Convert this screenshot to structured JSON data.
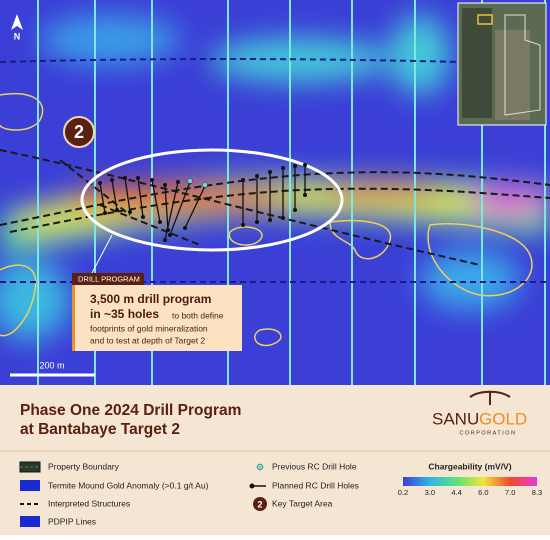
{
  "map": {
    "north": "N",
    "target_label": "2",
    "scale_label": "200 m",
    "callout": {
      "tag": "DRILL PROGRAM",
      "headline_1": "3,500 m drill program",
      "headline_2": "in ~35 holes",
      "body_1": "to both define",
      "body_2": "footprints of gold mineralization",
      "body_3": "and to test at depth of Target 2"
    }
  },
  "title": [
    "Phase One 2024 Drill Program",
    "at Bantabaye Target 2"
  ],
  "logo": {
    "name_1": "SANU",
    "name_2": "GOLD",
    "sub": "CORPORATION"
  },
  "legend": {
    "items": [
      "Property Boundary",
      "Termite Mound Gold Anomaly (>0.1 g/t Au)",
      "Interpreted Structures",
      "PDPIP Lines",
      "Previous RC Drill Hole",
      "Planned RC Drill Holes",
      "Key Target Area"
    ],
    "colorbar": {
      "title": "Chargeability (mV/V)",
      "ticks": [
        0.2,
        {
          "value": 3,
          "label": "3.0"
        },
        4.4,
        {
          "value": 6,
          "label": "6.0"
        },
        {
          "value": 7,
          "label": "7.0"
        },
        8.3
      ]
    }
  }
}
